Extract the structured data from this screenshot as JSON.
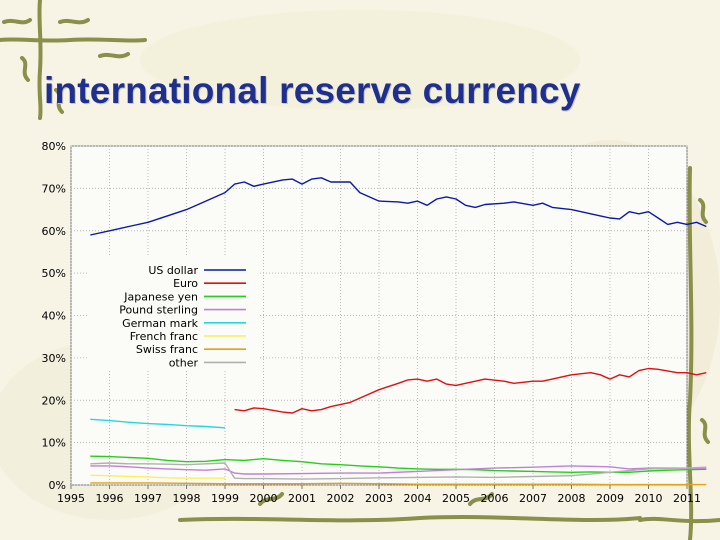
{
  "slide": {
    "title": "international reserve currency"
  },
  "chart_data": {
    "type": "line",
    "title": "",
    "xlabel": "",
    "ylabel": "",
    "xlim": [
      1995,
      2011
    ],
    "ylim": [
      0,
      80
    ],
    "x_ticks": [
      "1995",
      "1996",
      "1997",
      "1998",
      "1999",
      "2000",
      "2001",
      "2002",
      "2003",
      "2004",
      "2005",
      "2006",
      "2007",
      "2008",
      "2009",
      "2010",
      "2011"
    ],
    "y_ticks": [
      "0%",
      "10%",
      "20%",
      "30%",
      "40%",
      "50%",
      "60%",
      "70%",
      "80%"
    ],
    "grid": true,
    "legend_position": "left",
    "series": [
      {
        "name": "US dollar",
        "color": "#0b1aa8",
        "points": [
          [
            1995.5,
            59.0
          ],
          [
            1996.0,
            60.0
          ],
          [
            1996.5,
            61.0
          ],
          [
            1997.0,
            62.0
          ],
          [
            1997.5,
            63.5
          ],
          [
            1998.0,
            65.0
          ],
          [
            1998.5,
            67.0
          ],
          [
            1999.0,
            69.0
          ],
          [
            1999.25,
            71.0
          ],
          [
            1999.5,
            71.5
          ],
          [
            1999.75,
            70.5
          ],
          [
            2000.0,
            71.0
          ],
          [
            2000.5,
            72.0
          ],
          [
            2000.75,
            72.2
          ],
          [
            2001.0,
            71.0
          ],
          [
            2001.25,
            72.2
          ],
          [
            2001.5,
            72.5
          ],
          [
            2001.75,
            71.5
          ],
          [
            2002.25,
            71.5
          ],
          [
            2002.5,
            69.0
          ],
          [
            2003.0,
            67.0
          ],
          [
            2003.5,
            66.8
          ],
          [
            2003.75,
            66.5
          ],
          [
            2004.0,
            67.0
          ],
          [
            2004.25,
            66.0
          ],
          [
            2004.5,
            67.5
          ],
          [
            2004.75,
            68.0
          ],
          [
            2005.0,
            67.5
          ],
          [
            2005.25,
            66.0
          ],
          [
            2005.5,
            65.5
          ],
          [
            2005.75,
            66.2
          ],
          [
            2006.25,
            66.5
          ],
          [
            2006.5,
            66.8
          ],
          [
            2007.0,
            66.0
          ],
          [
            2007.25,
            66.5
          ],
          [
            2007.5,
            65.5
          ],
          [
            2008.0,
            65.0
          ],
          [
            2008.25,
            64.5
          ],
          [
            2008.75,
            63.5
          ],
          [
            2009.0,
            63.0
          ],
          [
            2009.25,
            62.8
          ],
          [
            2009.5,
            64.5
          ],
          [
            2009.75,
            64.0
          ],
          [
            2010.0,
            64.5
          ],
          [
            2010.25,
            63.0
          ],
          [
            2010.5,
            61.5
          ],
          [
            2010.75,
            62.0
          ],
          [
            2011.0,
            61.5
          ],
          [
            2011.25,
            62.0
          ],
          [
            2011.5,
            61.0
          ]
        ]
      },
      {
        "name": "Euro",
        "color": "#e01010",
        "points": [
          [
            1999.25,
            17.8
          ],
          [
            1999.5,
            17.5
          ],
          [
            1999.75,
            18.2
          ],
          [
            2000.0,
            18.0
          ],
          [
            2000.5,
            17.2
          ],
          [
            2000.75,
            17.0
          ],
          [
            2001.0,
            18.0
          ],
          [
            2001.25,
            17.5
          ],
          [
            2001.5,
            17.8
          ],
          [
            2001.75,
            18.5
          ],
          [
            2002.25,
            19.5
          ],
          [
            2002.5,
            20.5
          ],
          [
            2003.0,
            22.5
          ],
          [
            2003.5,
            24.0
          ],
          [
            2003.75,
            24.8
          ],
          [
            2004.0,
            25.0
          ],
          [
            2004.25,
            24.5
          ],
          [
            2004.5,
            25.0
          ],
          [
            2004.75,
            23.8
          ],
          [
            2005.0,
            23.5
          ],
          [
            2005.25,
            24.0
          ],
          [
            2005.5,
            24.5
          ],
          [
            2005.75,
            25.0
          ],
          [
            2006.25,
            24.5
          ],
          [
            2006.5,
            24.0
          ],
          [
            2007.0,
            24.5
          ],
          [
            2007.25,
            24.5
          ],
          [
            2007.5,
            25.0
          ],
          [
            2008.0,
            26.0
          ],
          [
            2008.5,
            26.5
          ],
          [
            2008.75,
            26.0
          ],
          [
            2009.0,
            25.0
          ],
          [
            2009.25,
            26.0
          ],
          [
            2009.5,
            25.5
          ],
          [
            2009.75,
            27.0
          ],
          [
            2010.0,
            27.5
          ],
          [
            2010.25,
            27.3
          ],
          [
            2010.75,
            26.5
          ],
          [
            2011.0,
            26.5
          ],
          [
            2011.25,
            26.0
          ],
          [
            2011.5,
            26.5
          ]
        ]
      },
      {
        "name": "Japanese yen",
        "color": "#22d01a",
        "points": [
          [
            1995.5,
            6.8
          ],
          [
            1996.0,
            6.7
          ],
          [
            1996.5,
            6.5
          ],
          [
            1997.0,
            6.3
          ],
          [
            1997.5,
            5.8
          ],
          [
            1998.0,
            5.5
          ],
          [
            1998.5,
            5.6
          ],
          [
            1999.0,
            6.0
          ],
          [
            1999.5,
            5.8
          ],
          [
            2000.0,
            6.2
          ],
          [
            2000.5,
            5.8
          ],
          [
            2001.0,
            5.5
          ],
          [
            2001.5,
            5.0
          ],
          [
            2002.0,
            4.8
          ],
          [
            2002.5,
            4.5
          ],
          [
            2003.0,
            4.3
          ],
          [
            2003.5,
            4.0
          ],
          [
            2004.0,
            3.8
          ],
          [
            2004.5,
            3.7
          ],
          [
            2005.0,
            3.7
          ],
          [
            2005.5,
            3.6
          ],
          [
            2006.0,
            3.4
          ],
          [
            2006.5,
            3.3
          ],
          [
            2007.0,
            3.2
          ],
          [
            2007.5,
            3.1
          ],
          [
            2008.0,
            3.0
          ],
          [
            2008.5,
            3.1
          ],
          [
            2009.0,
            3.0
          ],
          [
            2009.5,
            3.0
          ],
          [
            2010.0,
            3.3
          ],
          [
            2010.5,
            3.5
          ],
          [
            2011.0,
            3.6
          ],
          [
            2011.5,
            3.7
          ]
        ]
      },
      {
        "name": "Pound sterling",
        "color": "#c080d8",
        "points": [
          [
            1995.5,
            4.5
          ],
          [
            1996.0,
            4.5
          ],
          [
            1996.5,
            4.3
          ],
          [
            1997.0,
            4.0
          ],
          [
            1997.5,
            3.8
          ],
          [
            1998.0,
            3.6
          ],
          [
            1998.5,
            3.5
          ],
          [
            1999.0,
            3.8
          ],
          [
            1999.25,
            2.8
          ],
          [
            1999.5,
            2.6
          ],
          [
            2000.0,
            2.6
          ],
          [
            2001.0,
            2.7
          ],
          [
            2002.0,
            2.8
          ],
          [
            2003.0,
            2.8
          ],
          [
            2004.0,
            3.2
          ],
          [
            2005.0,
            3.6
          ],
          [
            2006.0,
            4.0
          ],
          [
            2007.0,
            4.2
          ],
          [
            2008.0,
            4.5
          ],
          [
            2009.0,
            4.3
          ],
          [
            2009.5,
            3.8
          ],
          [
            2010.0,
            4.0
          ],
          [
            2011.0,
            4.0
          ],
          [
            2011.5,
            3.9
          ]
        ]
      },
      {
        "name": "German mark",
        "color": "#20d8e0",
        "points": [
          [
            1995.5,
            15.5
          ],
          [
            1996.0,
            15.2
          ],
          [
            1996.5,
            14.8
          ],
          [
            1997.0,
            14.5
          ],
          [
            1997.5,
            14.3
          ],
          [
            1998.0,
            14.0
          ],
          [
            1998.5,
            13.8
          ],
          [
            1999.0,
            13.5
          ]
        ]
      },
      {
        "name": "French franc",
        "color": "#f8f060",
        "points": [
          [
            1995.5,
            2.3
          ],
          [
            1996.0,
            2.2
          ],
          [
            1996.5,
            2.0
          ],
          [
            1997.0,
            1.9
          ],
          [
            1997.5,
            1.7
          ],
          [
            1998.0,
            1.6
          ],
          [
            1998.5,
            1.6
          ],
          [
            1999.0,
            1.6
          ]
        ]
      },
      {
        "name": "Swiss franc",
        "color": "#e8a010",
        "points": [
          [
            1995.5,
            0.5
          ],
          [
            1996.0,
            0.5
          ],
          [
            1997.0,
            0.5
          ],
          [
            1998.0,
            0.4
          ],
          [
            1999.0,
            0.3
          ],
          [
            2000.0,
            0.3
          ],
          [
            2001.0,
            0.3
          ],
          [
            2002.0,
            0.4
          ],
          [
            2003.0,
            0.3
          ],
          [
            2004.0,
            0.2
          ],
          [
            2005.0,
            0.2
          ],
          [
            2006.0,
            0.2
          ],
          [
            2007.0,
            0.2
          ],
          [
            2008.0,
            0.2
          ],
          [
            2009.0,
            0.1
          ],
          [
            2010.0,
            0.1
          ],
          [
            2011.0,
            0.1
          ],
          [
            2011.5,
            0.1
          ]
        ]
      },
      {
        "name": "other",
        "color": "#b0b0b0",
        "points": [
          [
            1995.5,
            5.0
          ],
          [
            1996.0,
            5.2
          ],
          [
            1996.5,
            5.0
          ],
          [
            1997.0,
            5.0
          ],
          [
            1997.5,
            4.9
          ],
          [
            1998.0,
            4.8
          ],
          [
            1998.5,
            5.0
          ],
          [
            1999.0,
            5.2
          ],
          [
            1999.25,
            1.6
          ],
          [
            1999.5,
            1.5
          ],
          [
            2000.0,
            1.5
          ],
          [
            2001.0,
            1.4
          ],
          [
            2002.0,
            1.5
          ],
          [
            2003.0,
            1.7
          ],
          [
            2004.0,
            1.8
          ],
          [
            2005.0,
            1.9
          ],
          [
            2006.0,
            1.8
          ],
          [
            2007.0,
            2.0
          ],
          [
            2008.0,
            2.2
          ],
          [
            2009.0,
            3.0
          ],
          [
            2010.0,
            3.8
          ],
          [
            2011.0,
            4.0
          ],
          [
            2011.5,
            4.2
          ]
        ]
      }
    ]
  }
}
